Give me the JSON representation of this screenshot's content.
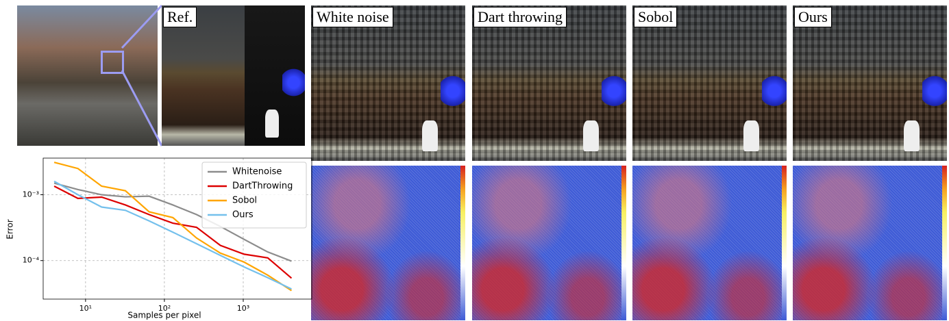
{
  "panels": {
    "reference": "Ref.",
    "methods": [
      "White noise",
      "Dart throwing",
      "Sobol",
      "Ours"
    ]
  },
  "chart_data": {
    "type": "line",
    "xlabel": "Samples per pixel",
    "ylabel": "Error",
    "x": [
      4,
      8,
      16,
      32,
      64,
      128,
      256,
      512,
      1024,
      2048,
      4096
    ],
    "series": [
      {
        "name": "Whitenoise",
        "color": "#8c8c8c",
        "values": [
          0.0015,
          0.0012,
          0.001,
          0.00093,
          0.00095,
          0.0007,
          0.0005,
          0.00033,
          0.00021,
          0.000135,
          9.8e-05
        ]
      },
      {
        "name": "DartThrowing",
        "color": "#dd0000",
        "values": [
          0.00135,
          0.00088,
          0.00092,
          0.0007,
          0.0005,
          0.00037,
          0.00032,
          0.00017,
          0.000125,
          0.00011,
          5.4e-05
        ]
      },
      {
        "name": "Sobol",
        "color": "#ffa500",
        "values": [
          0.0031,
          0.0025,
          0.00135,
          0.00115,
          0.00055,
          0.00045,
          0.00022,
          0.00013,
          9.5e-05,
          6e-05,
          3.5e-05
        ]
      },
      {
        "name": "Ours",
        "color": "#74c0ec",
        "values": [
          0.0016,
          0.001,
          0.00065,
          0.00058,
          0.0004,
          0.00027,
          0.00018,
          0.00012,
          8e-05,
          5.5e-05,
          3.7e-05
        ]
      }
    ],
    "xlog": true,
    "ylog": true,
    "grid": true,
    "legend": "upper right",
    "xlim": [
      2.9,
      7400
    ],
    "ylim": [
      2.6e-05,
      0.0036
    ],
    "xticks": [
      {
        "value": 10,
        "label": "10¹"
      },
      {
        "value": 100,
        "label": "10²"
      },
      {
        "value": 1000,
        "label": "10³"
      }
    ],
    "yticks": [
      {
        "value": 0.0001,
        "label": "10⁻⁴"
      },
      {
        "value": 0.001,
        "label": "10⁻³"
      }
    ]
  }
}
